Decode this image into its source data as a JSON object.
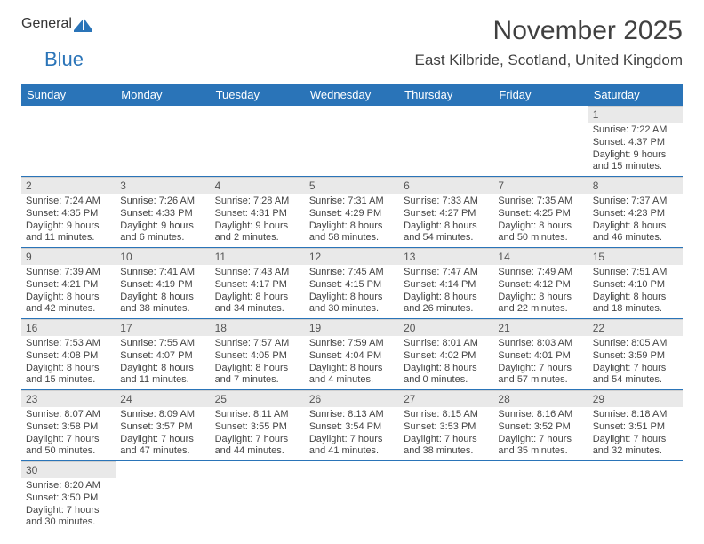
{
  "logo": {
    "general": "General",
    "blue": "Blue"
  },
  "title": "November 2025",
  "location": "East Kilbride, Scotland, United Kingdom",
  "colors": {
    "header_bg": "#2a74b8",
    "header_fg": "#ffffff",
    "daynum_bg": "#e9e9e9",
    "border": "#2a74b8",
    "text": "#333333"
  },
  "day_headers": [
    "Sunday",
    "Monday",
    "Tuesday",
    "Wednesday",
    "Thursday",
    "Friday",
    "Saturday"
  ],
  "weeks": [
    [
      null,
      null,
      null,
      null,
      null,
      null,
      {
        "n": "1",
        "sunrise": "Sunrise: 7:22 AM",
        "sunset": "Sunset: 4:37 PM",
        "day1": "Daylight: 9 hours",
        "day2": "and 15 minutes."
      }
    ],
    [
      {
        "n": "2",
        "sunrise": "Sunrise: 7:24 AM",
        "sunset": "Sunset: 4:35 PM",
        "day1": "Daylight: 9 hours",
        "day2": "and 11 minutes."
      },
      {
        "n": "3",
        "sunrise": "Sunrise: 7:26 AM",
        "sunset": "Sunset: 4:33 PM",
        "day1": "Daylight: 9 hours",
        "day2": "and 6 minutes."
      },
      {
        "n": "4",
        "sunrise": "Sunrise: 7:28 AM",
        "sunset": "Sunset: 4:31 PM",
        "day1": "Daylight: 9 hours",
        "day2": "and 2 minutes."
      },
      {
        "n": "5",
        "sunrise": "Sunrise: 7:31 AM",
        "sunset": "Sunset: 4:29 PM",
        "day1": "Daylight: 8 hours",
        "day2": "and 58 minutes."
      },
      {
        "n": "6",
        "sunrise": "Sunrise: 7:33 AM",
        "sunset": "Sunset: 4:27 PM",
        "day1": "Daylight: 8 hours",
        "day2": "and 54 minutes."
      },
      {
        "n": "7",
        "sunrise": "Sunrise: 7:35 AM",
        "sunset": "Sunset: 4:25 PM",
        "day1": "Daylight: 8 hours",
        "day2": "and 50 minutes."
      },
      {
        "n": "8",
        "sunrise": "Sunrise: 7:37 AM",
        "sunset": "Sunset: 4:23 PM",
        "day1": "Daylight: 8 hours",
        "day2": "and 46 minutes."
      }
    ],
    [
      {
        "n": "9",
        "sunrise": "Sunrise: 7:39 AM",
        "sunset": "Sunset: 4:21 PM",
        "day1": "Daylight: 8 hours",
        "day2": "and 42 minutes."
      },
      {
        "n": "10",
        "sunrise": "Sunrise: 7:41 AM",
        "sunset": "Sunset: 4:19 PM",
        "day1": "Daylight: 8 hours",
        "day2": "and 38 minutes."
      },
      {
        "n": "11",
        "sunrise": "Sunrise: 7:43 AM",
        "sunset": "Sunset: 4:17 PM",
        "day1": "Daylight: 8 hours",
        "day2": "and 34 minutes."
      },
      {
        "n": "12",
        "sunrise": "Sunrise: 7:45 AM",
        "sunset": "Sunset: 4:15 PM",
        "day1": "Daylight: 8 hours",
        "day2": "and 30 minutes."
      },
      {
        "n": "13",
        "sunrise": "Sunrise: 7:47 AM",
        "sunset": "Sunset: 4:14 PM",
        "day1": "Daylight: 8 hours",
        "day2": "and 26 minutes."
      },
      {
        "n": "14",
        "sunrise": "Sunrise: 7:49 AM",
        "sunset": "Sunset: 4:12 PM",
        "day1": "Daylight: 8 hours",
        "day2": "and 22 minutes."
      },
      {
        "n": "15",
        "sunrise": "Sunrise: 7:51 AM",
        "sunset": "Sunset: 4:10 PM",
        "day1": "Daylight: 8 hours",
        "day2": "and 18 minutes."
      }
    ],
    [
      {
        "n": "16",
        "sunrise": "Sunrise: 7:53 AM",
        "sunset": "Sunset: 4:08 PM",
        "day1": "Daylight: 8 hours",
        "day2": "and 15 minutes."
      },
      {
        "n": "17",
        "sunrise": "Sunrise: 7:55 AM",
        "sunset": "Sunset: 4:07 PM",
        "day1": "Daylight: 8 hours",
        "day2": "and 11 minutes."
      },
      {
        "n": "18",
        "sunrise": "Sunrise: 7:57 AM",
        "sunset": "Sunset: 4:05 PM",
        "day1": "Daylight: 8 hours",
        "day2": "and 7 minutes."
      },
      {
        "n": "19",
        "sunrise": "Sunrise: 7:59 AM",
        "sunset": "Sunset: 4:04 PM",
        "day1": "Daylight: 8 hours",
        "day2": "and 4 minutes."
      },
      {
        "n": "20",
        "sunrise": "Sunrise: 8:01 AM",
        "sunset": "Sunset: 4:02 PM",
        "day1": "Daylight: 8 hours",
        "day2": "and 0 minutes."
      },
      {
        "n": "21",
        "sunrise": "Sunrise: 8:03 AM",
        "sunset": "Sunset: 4:01 PM",
        "day1": "Daylight: 7 hours",
        "day2": "and 57 minutes."
      },
      {
        "n": "22",
        "sunrise": "Sunrise: 8:05 AM",
        "sunset": "Sunset: 3:59 PM",
        "day1": "Daylight: 7 hours",
        "day2": "and 54 minutes."
      }
    ],
    [
      {
        "n": "23",
        "sunrise": "Sunrise: 8:07 AM",
        "sunset": "Sunset: 3:58 PM",
        "day1": "Daylight: 7 hours",
        "day2": "and 50 minutes."
      },
      {
        "n": "24",
        "sunrise": "Sunrise: 8:09 AM",
        "sunset": "Sunset: 3:57 PM",
        "day1": "Daylight: 7 hours",
        "day2": "and 47 minutes."
      },
      {
        "n": "25",
        "sunrise": "Sunrise: 8:11 AM",
        "sunset": "Sunset: 3:55 PM",
        "day1": "Daylight: 7 hours",
        "day2": "and 44 minutes."
      },
      {
        "n": "26",
        "sunrise": "Sunrise: 8:13 AM",
        "sunset": "Sunset: 3:54 PM",
        "day1": "Daylight: 7 hours",
        "day2": "and 41 minutes."
      },
      {
        "n": "27",
        "sunrise": "Sunrise: 8:15 AM",
        "sunset": "Sunset: 3:53 PM",
        "day1": "Daylight: 7 hours",
        "day2": "and 38 minutes."
      },
      {
        "n": "28",
        "sunrise": "Sunrise: 8:16 AM",
        "sunset": "Sunset: 3:52 PM",
        "day1": "Daylight: 7 hours",
        "day2": "and 35 minutes."
      },
      {
        "n": "29",
        "sunrise": "Sunrise: 8:18 AM",
        "sunset": "Sunset: 3:51 PM",
        "day1": "Daylight: 7 hours",
        "day2": "and 32 minutes."
      }
    ],
    [
      {
        "n": "30",
        "sunrise": "Sunrise: 8:20 AM",
        "sunset": "Sunset: 3:50 PM",
        "day1": "Daylight: 7 hours",
        "day2": "and 30 minutes."
      },
      null,
      null,
      null,
      null,
      null,
      null
    ]
  ]
}
